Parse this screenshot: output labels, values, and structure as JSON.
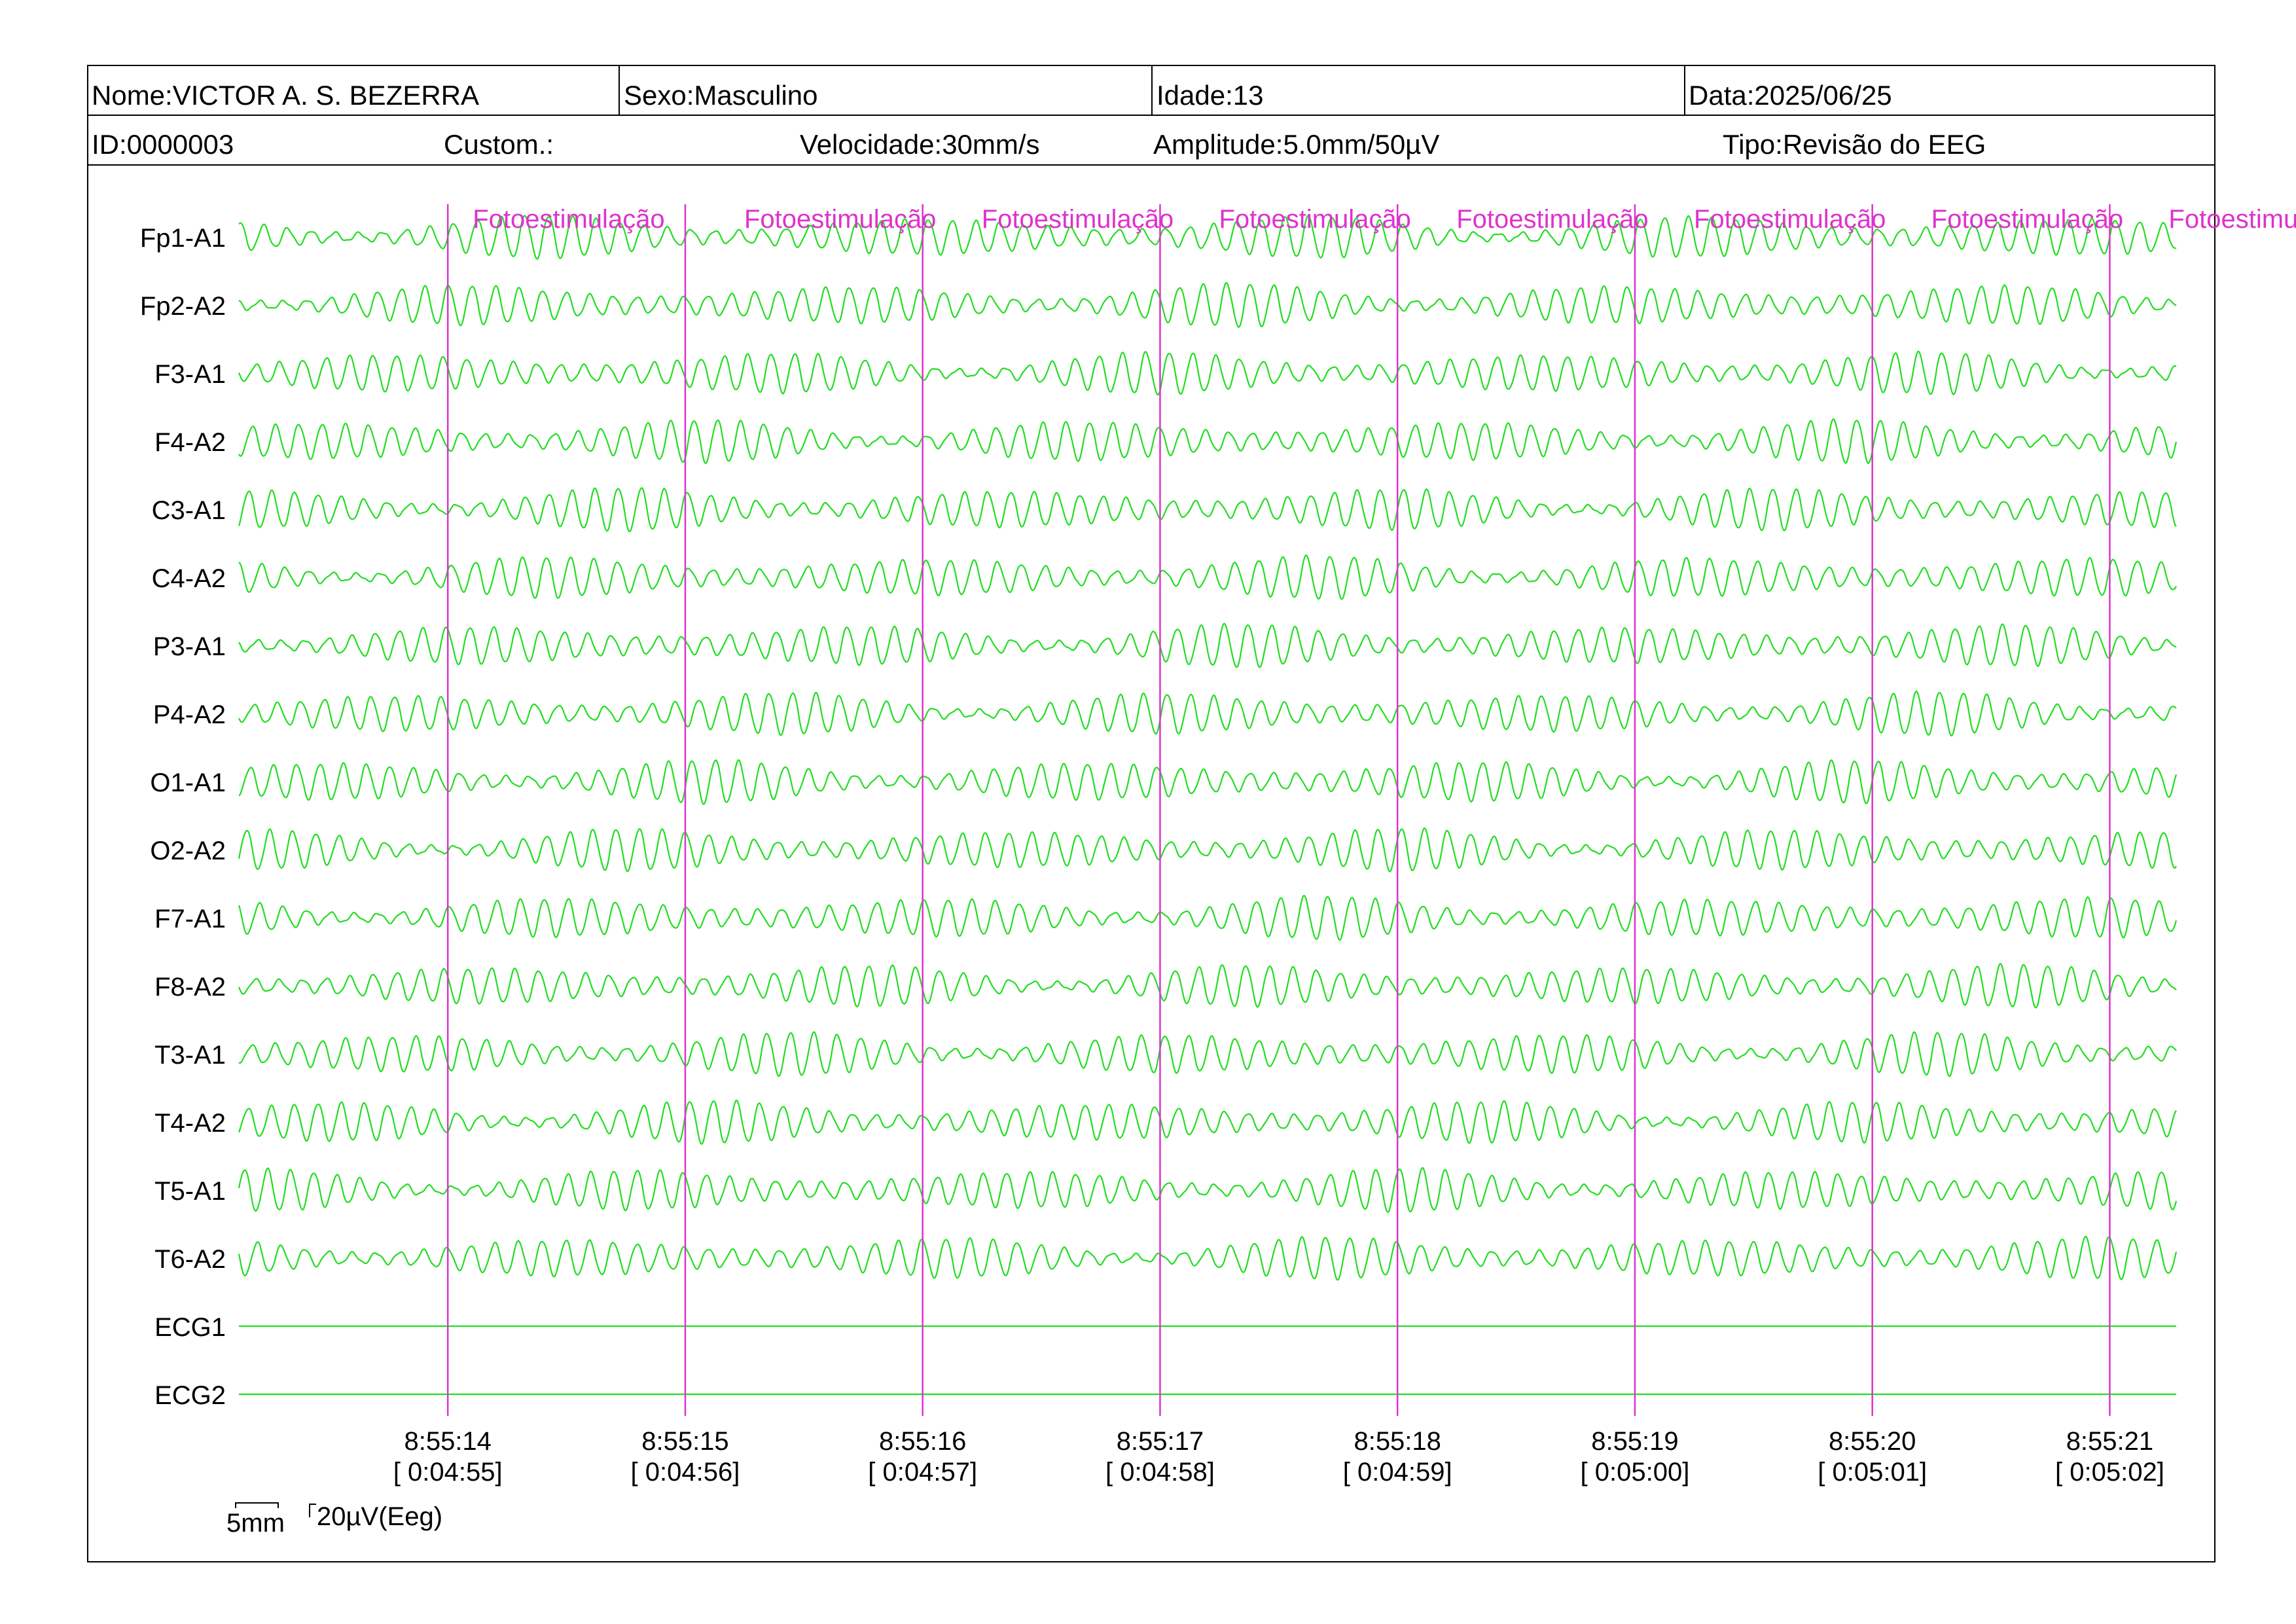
{
  "header": {
    "row1": [
      {
        "name": "name-field",
        "label": "Nome:",
        "value": "VICTOR A. S. BEZERRA"
      },
      {
        "name": "sex-field",
        "label": "Sexo:",
        "value": "Masculino"
      },
      {
        "name": "age-field",
        "label": "Idade:",
        "value": "13"
      },
      {
        "name": "date-field",
        "label": "Data:",
        "value": "2025/06/25"
      }
    ],
    "row2": [
      {
        "name": "id-field",
        "label": "ID:",
        "value": "0000003"
      },
      {
        "name": "custom-field",
        "label": "Custom.:",
        "value": ""
      },
      {
        "name": "speed-field",
        "label": "Velocidade:",
        "value": "30mm/s"
      },
      {
        "name": "amplitude-field",
        "label": "Amplitude:",
        "value": "5.0mm/50µV"
      },
      {
        "name": "type-field",
        "label": "Tipo:",
        "value": "Revisão do EEG"
      }
    ]
  },
  "chart_data": {
    "type": "line",
    "title": "",
    "xlabel": "",
    "ylabel": "",
    "channels": [
      "Fp1-A1",
      "Fp2-A2",
      "F3-A1",
      "F4-A2",
      "C3-A1",
      "C4-A2",
      "P3-A1",
      "P4-A2",
      "O1-A1",
      "O2-A2",
      "F7-A1",
      "F8-A2",
      "T3-A1",
      "T4-A2",
      "T5-A1",
      "T6-A2",
      "ECG1",
      "ECG2"
    ],
    "time_ticks": [
      {
        "clock": "8:55:14",
        "elapsed": "[ 0:04:55]"
      },
      {
        "clock": "8:55:15",
        "elapsed": "[ 0:04:56]"
      },
      {
        "clock": "8:55:16",
        "elapsed": "[ 0:04:57]"
      },
      {
        "clock": "8:55:17",
        "elapsed": "[ 0:04:58]"
      },
      {
        "clock": "8:55:18",
        "elapsed": "[ 0:04:59]"
      },
      {
        "clock": "8:55:19",
        "elapsed": "[ 0:05:00]"
      },
      {
        "clock": "8:55:20",
        "elapsed": "[ 0:05:01]"
      },
      {
        "clock": "8:55:21",
        "elapsed": "[ 0:05:02]"
      }
    ],
    "event_label": "Fotoestimulação",
    "event_count": 8,
    "time_range_s": [
      -0.88,
      7.28
    ],
    "eeg_frequency_hz_approx": 10,
    "eeg_amplitude_uv_range": [
      10,
      60
    ],
    "ecg_flat": true,
    "scale_bar": {
      "time": "5mm",
      "amplitude": "20µV(Eeg)"
    },
    "grid": false,
    "legend": "none",
    "colors": {
      "trace": "#22dd22",
      "event_marker": "#dd33cc",
      "text": "#000000",
      "frame": "#000000"
    }
  }
}
